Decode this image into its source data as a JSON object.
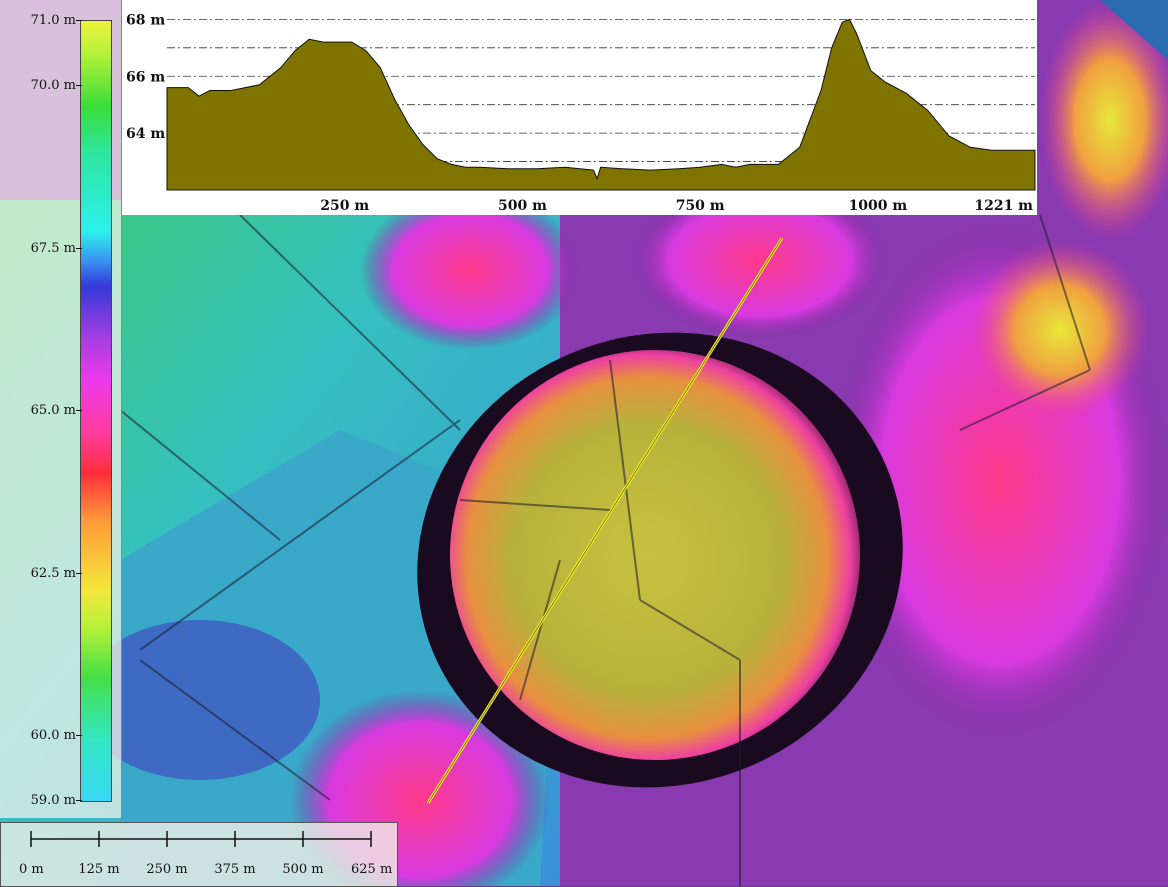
{
  "legend": {
    "ticks": [
      "71.0 m",
      "70.0 m",
      "67.5 m",
      "65.0 m",
      "62.5 m",
      "60.0 m",
      "59.0 m"
    ],
    "tick_values": [
      71.0,
      70.0,
      67.5,
      65.0,
      62.5,
      60.0,
      59.0
    ],
    "min": 59.0,
    "max": 71.0
  },
  "profile": {
    "y_ticks": [
      "68 m",
      "66 m",
      "64 m"
    ],
    "x_ticks": [
      "250 m",
      "500 m",
      "750 m",
      "1000 m",
      "1221 m"
    ],
    "fill_color": "#7f7400",
    "chart_data": {
      "type": "area",
      "xlabel": "",
      "ylabel": "",
      "x": [
        0,
        30,
        45,
        60,
        90,
        130,
        160,
        180,
        200,
        220,
        260,
        280,
        300,
        320,
        340,
        360,
        380,
        400,
        420,
        440,
        480,
        520,
        560,
        600,
        605,
        610,
        640,
        680,
        720,
        750,
        780,
        800,
        820,
        860,
        890,
        920,
        935,
        950,
        960,
        970,
        990,
        1010,
        1040,
        1070,
        1100,
        1130,
        1160,
        1190,
        1221
      ],
      "y": [
        65.6,
        65.6,
        65.3,
        65.5,
        65.5,
        65.7,
        66.3,
        66.9,
        67.3,
        67.2,
        67.2,
        66.9,
        66.3,
        65.2,
        64.3,
        63.6,
        63.1,
        62.9,
        62.8,
        62.8,
        62.75,
        62.75,
        62.8,
        62.7,
        62.4,
        62.8,
        62.75,
        62.7,
        62.75,
        62.8,
        62.9,
        62.8,
        62.9,
        62.9,
        63.5,
        65.5,
        67.0,
        67.9,
        68.0,
        67.5,
        66.2,
        65.8,
        65.4,
        64.8,
        63.9,
        63.5,
        63.4,
        63.4,
        63.4
      ],
      "ylim": [
        62.0,
        68.4
      ],
      "xlim": [
        0,
        1221
      ],
      "grid": true
    }
  },
  "scalebar": {
    "labels": [
      "0 m",
      "125 m",
      "250 m",
      "375 m",
      "500 m",
      "625 m"
    ],
    "values": [
      0,
      125,
      250,
      375,
      500,
      625
    ]
  },
  "profile_line_color": "#f2ec2a"
}
